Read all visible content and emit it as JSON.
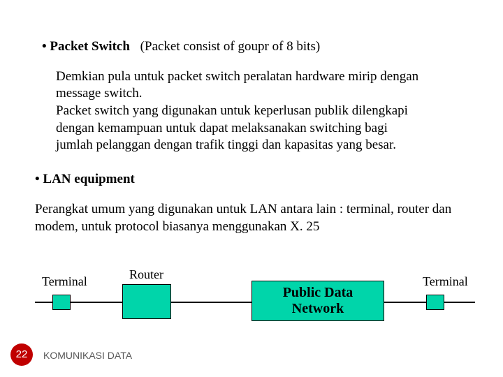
{
  "bullet1": {
    "dot": "•",
    "heading": "Packet Switch",
    "sub": "(Packet consist of goupr of  8 bits)"
  },
  "para1": "Demkian pula untuk packet switch peralatan hardware mirip dengan message switch.\nPacket switch yang digunakan untuk keperlusan publik dilengkapi dengan kemampuan untuk dapat melaksanakan switching bagi jumlah pelanggan dengan trafik tinggi dan kapasitas yang besar.",
  "bullet2": {
    "dot": "•",
    "heading": "LAN equipment"
  },
  "para2": "Perangkat umum yang digunakan untuk LAN antara lain : terminal, router dan modem, untuk protocol biasanya menggunakan X. 25",
  "diagram": {
    "terminal_left": "Terminal",
    "router": "Router",
    "pdn_line1": "Public Data",
    "pdn_line2": "Network",
    "terminal_right": "Terminal",
    "colors": {
      "box_fill": "#00d5aa",
      "border": "#000000",
      "line": "#000000"
    }
  },
  "footer": {
    "page": "22",
    "title": "KOMUNIKASI DATA",
    "circle_color": "#c00000",
    "text_color": "#595959"
  }
}
